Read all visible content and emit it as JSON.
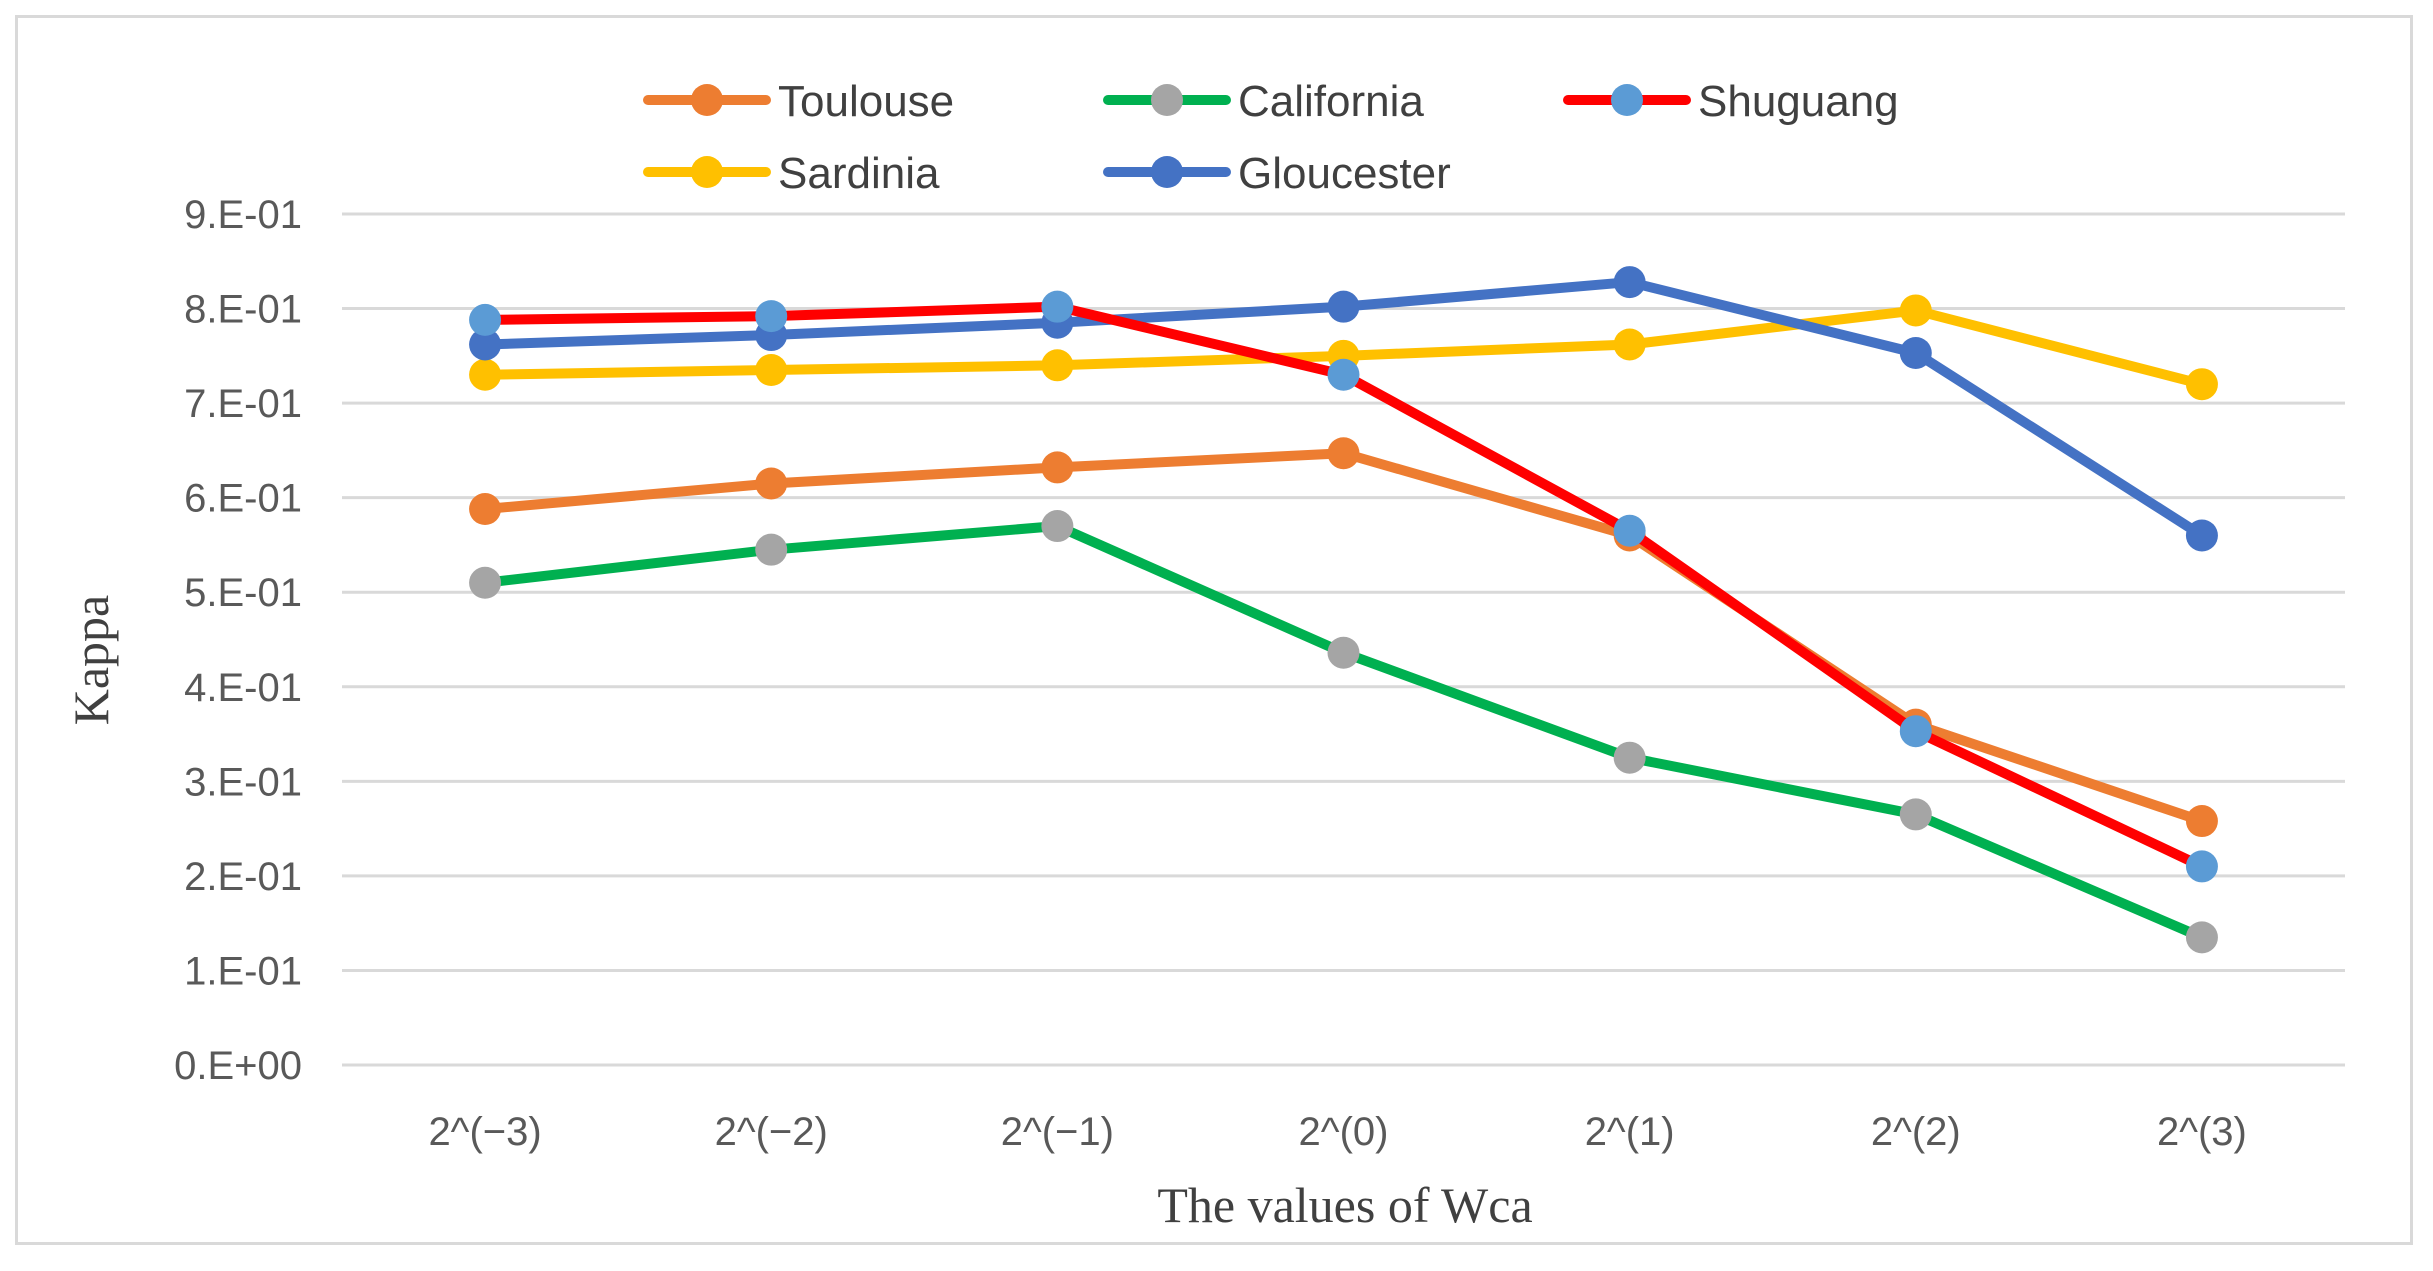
{
  "chart_data": {
    "type": "line",
    "title": "",
    "xlabel": "The values of Wca",
    "ylabel": "Kappa",
    "categories": [
      "2^(−3)",
      "2^(−2)",
      "2^(−1)",
      "2^(0)",
      "2^(1)",
      "2^(2)",
      "2^(3)"
    ],
    "ylim": [
      0,
      0.9
    ],
    "yticks": [
      0,
      0.1,
      0.2,
      0.3,
      0.4,
      0.5,
      0.6,
      0.7,
      0.8,
      0.9
    ],
    "ytick_labels": [
      "0.E+00",
      "1.E-01",
      "2.E-01",
      "3.E-01",
      "4.E-01",
      "5.E-01",
      "6.E-01",
      "7.E-01",
      "8.E-01",
      "9.E-01"
    ],
    "grid": true,
    "legend_position": "top",
    "series": [
      {
        "name": "Sardinia",
        "line_color": "#FFC000",
        "marker_color": "#FFC000",
        "values": [
          0.73,
          0.735,
          0.74,
          0.75,
          0.762,
          0.798,
          0.72
        ]
      },
      {
        "name": "Gloucester",
        "line_color": "#4472C4",
        "marker_color": "#4472C4",
        "values": [
          0.762,
          0.772,
          0.785,
          0.802,
          0.828,
          0.753,
          0.56
        ]
      },
      {
        "name": "Toulouse",
        "line_color": "#ED7D31",
        "marker_color": "#ED7D31",
        "values": [
          0.588,
          0.615,
          0.632,
          0.647,
          0.56,
          0.36,
          0.258
        ]
      },
      {
        "name": "California",
        "line_color": "#00B050",
        "marker_color": "#A5A5A5",
        "values": [
          0.51,
          0.545,
          0.57,
          0.436,
          0.325,
          0.265,
          0.135
        ]
      },
      {
        "name": "Shuguang",
        "line_color": "#FF0000",
        "marker_color": "#5B9BD5",
        "values": [
          0.788,
          0.792,
          0.802,
          0.73,
          0.565,
          0.353,
          0.21
        ]
      }
    ],
    "legend": [
      [
        "Toulouse",
        "California",
        "Shuguang"
      ],
      [
        "Sardinia",
        "Gloucester"
      ]
    ]
  }
}
